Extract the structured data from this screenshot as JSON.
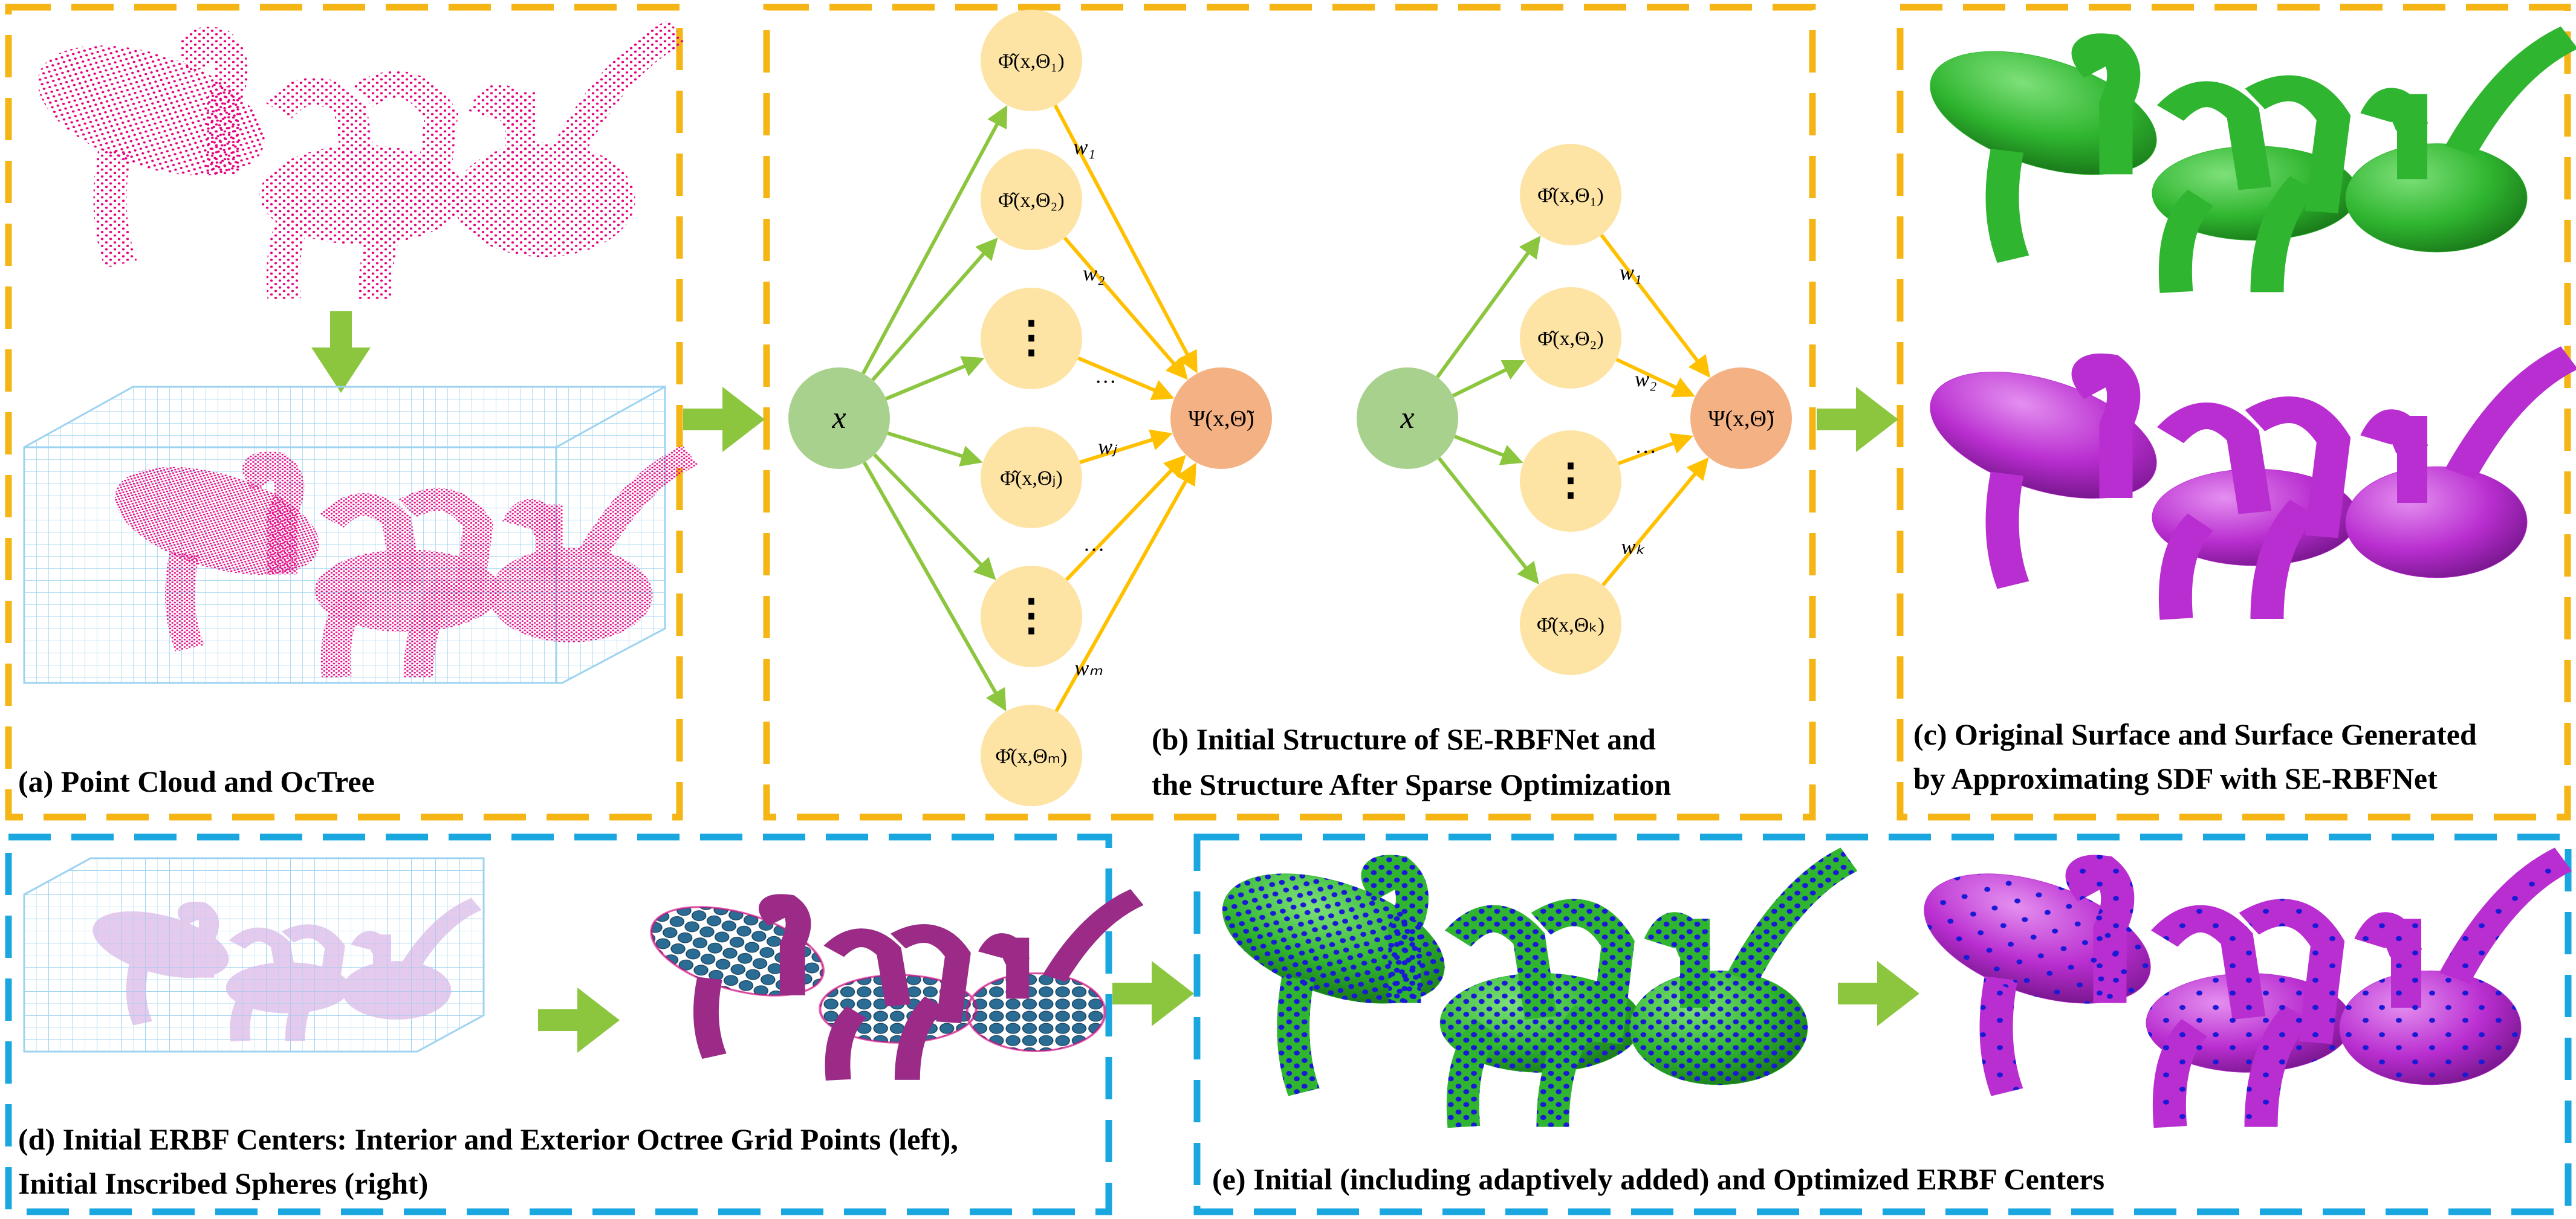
{
  "panels": {
    "a": {
      "caption": "(a) Point Cloud and OcTree",
      "border_color": "#f4b515"
    },
    "b": {
      "caption_line1": "(b) Initial Structure of SE-RBFNet and",
      "caption_line2": "the Structure After Sparse Optimization",
      "border_color": "#f4b515"
    },
    "c": {
      "caption_line1": "(c) Original Surface and Surface Generated",
      "caption_line2": "by Approximating SDF with SE-RBFNet",
      "border_color": "#f4b515"
    },
    "d": {
      "caption_line1": "(d) Initial ERBF Centers: Interior and Exterior Octree Grid Points (left),",
      "caption_line2": "Initial Inscribed Spheres (right)",
      "border_color": "#1aa7e0"
    },
    "e": {
      "caption": "(e) Initial (including adaptively added) and Optimized ERBF Centers",
      "border_color": "#1aa7e0"
    }
  },
  "network_left": {
    "input": "x",
    "output": "Ψ(x,Θ̃)",
    "nodes": [
      "Φ̂(x,Θ₁)",
      "Φ̂(x,Θ₂)",
      "⋮",
      "Φ̂(x,Θⱼ)",
      "⋮",
      "Φ̂(x,Θₘ)"
    ],
    "weights": [
      "w₁",
      "w₂",
      "…",
      "wⱼ",
      "…",
      "wₘ"
    ]
  },
  "network_right": {
    "input": "x",
    "output": "Ψ(x,Θ̃)",
    "nodes": [
      "Φ̂(x,Θ₁)",
      "Φ̂(x,Θ₂)",
      "⋮",
      "Φ̂(x,Θₖ)"
    ],
    "weights": [
      "w₁",
      "w₂",
      "…",
      "wₖ"
    ]
  },
  "colors": {
    "input_node": "#a9d18e",
    "hidden_node": "#fde4a4",
    "output_node": "#f4b183",
    "input_edge": "#8cc63e",
    "output_edge": "#ffc000",
    "flow_arrow": "#8cc63e",
    "point_cloud": "#e6007e",
    "octree": "#9dd3f0",
    "surface_green": "#2fb52f",
    "surface_purple": "#b92ed0",
    "center_dots": "#1a1ad6",
    "sphere": "#1f5f86"
  }
}
